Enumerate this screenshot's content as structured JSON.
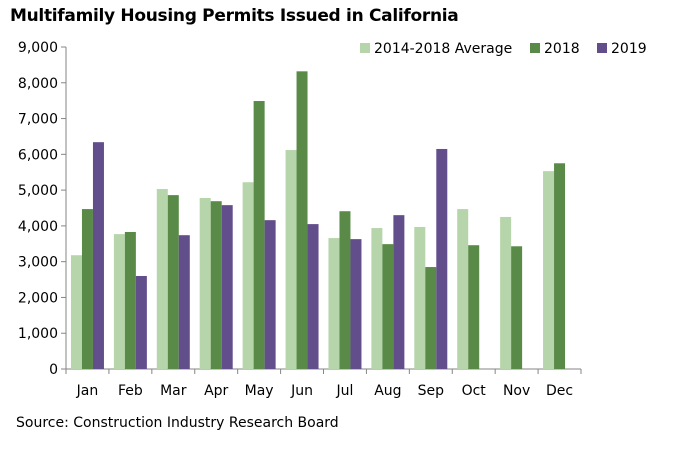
{
  "chart_data": {
    "type": "bar",
    "title": "Multifamily Housing Permits Issued in California",
    "xlabel": "",
    "ylabel": "",
    "ylim": [
      0,
      9000
    ],
    "yticks": [
      "0",
      "1,000",
      "2,000",
      "3,000",
      "4,000",
      "5,000",
      "6,000",
      "7,000",
      "8,000",
      "9,000"
    ],
    "ytick_values": [
      0,
      1000,
      2000,
      3000,
      4000,
      5000,
      6000,
      7000,
      8000,
      9000
    ],
    "grid": false,
    "legend_position": "top-right",
    "categories": [
      "Jan",
      "Feb",
      "Mar",
      "Apr",
      "May",
      "Jun",
      "Jul",
      "Aug",
      "Sep",
      "Oct",
      "Nov",
      "Dec"
    ],
    "series": [
      {
        "name": "2014-2018 Average",
        "color": "#b7d5ab",
        "values": [
          3180,
          3770,
          5030,
          4780,
          5220,
          6120,
          3660,
          3940,
          3970,
          4470,
          4250,
          5530
        ]
      },
      {
        "name": "2018",
        "color": "#5a8a48",
        "values": [
          4470,
          3830,
          4860,
          4690,
          7490,
          8320,
          4410,
          3490,
          2850,
          3460,
          3430,
          5750
        ]
      },
      {
        "name": "2019",
        "color": "#634e8c",
        "values": [
          6340,
          2600,
          3740,
          4580,
          4160,
          4050,
          3630,
          4300,
          6150,
          null,
          null,
          null
        ]
      }
    ],
    "source": "Source: Construction Industry Research Board"
  }
}
